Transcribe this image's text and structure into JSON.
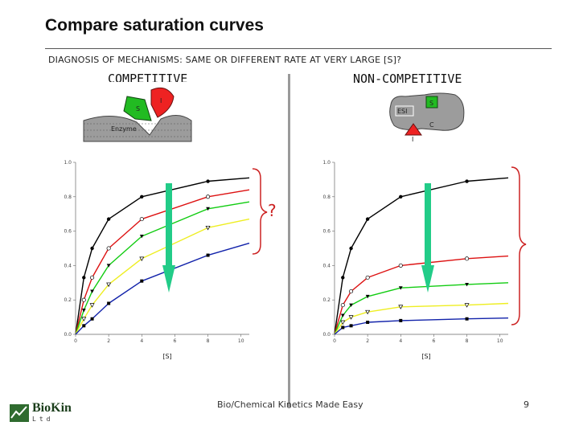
{
  "slide": {
    "title": "Compare saturation curves",
    "subtitle": "DIAGNOSIS OF MECHANISMS: SAME OR DIFFERENT RATE AT VERY LARGE [S]?",
    "label_competitive": "COMPETITIVE",
    "label_noncompetitive": "NON-COMPETITIVE",
    "question_mark": "?",
    "footer": "Bio/Chemical Kinetics Made Easy",
    "page_number": "9",
    "logo_text": "BioKin",
    "logo_sub": "Ltd"
  },
  "cartoons": {
    "competitive": {
      "substrate_label": "S",
      "inhibitor_label": "I",
      "enzyme_label": "Enzyme"
    },
    "noncompetitive": {
      "substrate_label": "S",
      "complex_label": "ESI",
      "inhibitor_label": "I",
      "extra_label": "C"
    }
  },
  "colors": {
    "black": "#000000",
    "red": "#dd1111",
    "green": "#11cc11",
    "yellow": "#eeee22",
    "blue": "#1122aa",
    "arrow": "#22cc88",
    "brace": "#cc2222"
  },
  "chart_data": [
    {
      "type": "line",
      "name": "competitive",
      "xlabel": "[S]",
      "ylabel": "",
      "xlim": [
        0,
        10.5
      ],
      "ylim": [
        0,
        1.0
      ],
      "xticks": [
        "0",
        "2",
        "4",
        "6",
        "8",
        "10"
      ],
      "yticks": [
        "0.0",
        "0.2",
        "0.4",
        "0.6",
        "0.8",
        "1.0"
      ],
      "series": [
        {
          "color": "black",
          "marker": "circle-filled",
          "x": [
            0.5,
            1,
            2,
            4,
            8
          ],
          "y": [
            0.33,
            0.5,
            0.67,
            0.8,
            0.89
          ],
          "curve_end": 0.91
        },
        {
          "color": "red",
          "marker": "circle-open",
          "x": [
            0.5,
            1,
            2,
            4,
            8
          ],
          "y": [
            0.2,
            0.33,
            0.5,
            0.67,
            0.8
          ],
          "curve_end": 0.84
        },
        {
          "color": "green",
          "marker": "triangle-filled",
          "x": [
            0.5,
            1,
            2,
            4,
            8
          ],
          "y": [
            0.14,
            0.25,
            0.4,
            0.57,
            0.73
          ],
          "curve_end": 0.77
        },
        {
          "color": "yellow",
          "marker": "triangle-open",
          "x": [
            0.5,
            1,
            2,
            4,
            8
          ],
          "y": [
            0.09,
            0.17,
            0.29,
            0.44,
            0.62
          ],
          "curve_end": 0.67
        },
        {
          "color": "blue",
          "marker": "square-filled",
          "x": [
            0.5,
            1,
            2,
            4,
            8
          ],
          "y": [
            0.05,
            0.09,
            0.18,
            0.31,
            0.46
          ],
          "curve_end": 0.53
        }
      ]
    },
    {
      "type": "line",
      "name": "noncompetitive",
      "xlabel": "[S]",
      "ylabel": "",
      "xlim": [
        0,
        10.5
      ],
      "ylim": [
        0,
        1.0
      ],
      "xticks": [
        "0",
        "2",
        "4",
        "6",
        "8",
        "10"
      ],
      "yticks": [
        "0.0",
        "0.2",
        "0.4",
        "0.6",
        "0.8",
        "1.0"
      ],
      "series": [
        {
          "color": "black",
          "marker": "circle-filled",
          "x": [
            0.5,
            1,
            2,
            4,
            8
          ],
          "y": [
            0.33,
            0.5,
            0.67,
            0.8,
            0.89
          ],
          "curve_end": 0.91
        },
        {
          "color": "red",
          "marker": "circle-open",
          "x": [
            0.5,
            1,
            2,
            4,
            8
          ],
          "y": [
            0.17,
            0.25,
            0.33,
            0.4,
            0.44
          ],
          "curve_end": 0.455
        },
        {
          "color": "green",
          "marker": "triangle-filled",
          "x": [
            0.5,
            1,
            2,
            4,
            8
          ],
          "y": [
            0.11,
            0.17,
            0.22,
            0.27,
            0.29
          ],
          "curve_end": 0.3
        },
        {
          "color": "yellow",
          "marker": "triangle-open",
          "x": [
            0.5,
            1,
            2,
            4,
            8
          ],
          "y": [
            0.07,
            0.1,
            0.13,
            0.16,
            0.17
          ],
          "curve_end": 0.18
        },
        {
          "color": "blue",
          "marker": "square-filled",
          "x": [
            0.5,
            1,
            2,
            4,
            8
          ],
          "y": [
            0.04,
            0.05,
            0.07,
            0.08,
            0.09
          ],
          "curve_end": 0.095
        }
      ]
    }
  ]
}
